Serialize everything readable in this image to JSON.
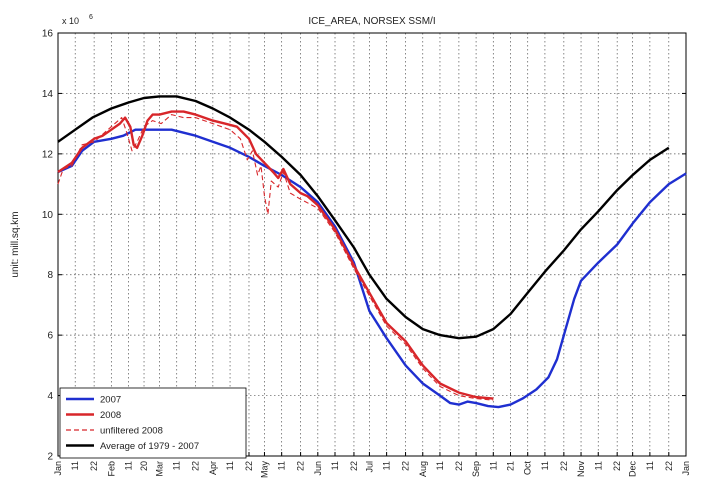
{
  "chart_data": {
    "type": "line",
    "title": "ICE_AREA, NORSEX SSM/I",
    "ylabel": "unit: mill.sq.km",
    "y_exponent_label": "x 10",
    "y_exponent": "6",
    "ylim": [
      2,
      16
    ],
    "yticks": [
      2,
      4,
      6,
      8,
      10,
      12,
      14,
      16
    ],
    "xlim": [
      0,
      365
    ],
    "grid": true,
    "legend_position": "bottom-left",
    "x_ticks": [
      {
        "x": 0,
        "label": "Jan",
        "major": true
      },
      {
        "x": 10,
        "label": "11",
        "major": false
      },
      {
        "x": 21,
        "label": "22",
        "major": false
      },
      {
        "x": 31,
        "label": "Feb",
        "major": true
      },
      {
        "x": 41,
        "label": "11",
        "major": false
      },
      {
        "x": 50,
        "label": "20",
        "major": false
      },
      {
        "x": 59,
        "label": "Mar",
        "major": true
      },
      {
        "x": 69,
        "label": "11",
        "major": false
      },
      {
        "x": 80,
        "label": "22",
        "major": false
      },
      {
        "x": 90,
        "label": "Apr",
        "major": true
      },
      {
        "x": 100,
        "label": "11",
        "major": false
      },
      {
        "x": 111,
        "label": "22",
        "major": false
      },
      {
        "x": 120,
        "label": "May",
        "major": true
      },
      {
        "x": 130,
        "label": "11",
        "major": false
      },
      {
        "x": 141,
        "label": "22",
        "major": false
      },
      {
        "x": 151,
        "label": "Jun",
        "major": true
      },
      {
        "x": 161,
        "label": "11",
        "major": false
      },
      {
        "x": 172,
        "label": "22",
        "major": false
      },
      {
        "x": 181,
        "label": "Jul",
        "major": true
      },
      {
        "x": 191,
        "label": "11",
        "major": false
      },
      {
        "x": 202,
        "label": "22",
        "major": false
      },
      {
        "x": 212,
        "label": "Aug",
        "major": true
      },
      {
        "x": 222,
        "label": "11",
        "major": false
      },
      {
        "x": 233,
        "label": "22",
        "major": false
      },
      {
        "x": 243,
        "label": "Sep",
        "major": true
      },
      {
        "x": 253,
        "label": "11",
        "major": false
      },
      {
        "x": 263,
        "label": "21",
        "major": false
      },
      {
        "x": 273,
        "label": "Oct",
        "major": true
      },
      {
        "x": 283,
        "label": "11",
        "major": false
      },
      {
        "x": 294,
        "label": "22",
        "major": false
      },
      {
        "x": 304,
        "label": "Nov",
        "major": true
      },
      {
        "x": 314,
        "label": "11",
        "major": false
      },
      {
        "x": 325,
        "label": "22",
        "major": false
      },
      {
        "x": 334,
        "label": "Dec",
        "major": true
      },
      {
        "x": 344,
        "label": "11",
        "major": false
      },
      {
        "x": 355,
        "label": "22",
        "major": false
      },
      {
        "x": 365,
        "label": "Jan",
        "major": true
      }
    ],
    "series": [
      {
        "name": "2007",
        "color": "#1f2fd0",
        "dash": "solid",
        "points": [
          [
            0,
            11.4
          ],
          [
            8,
            11.6
          ],
          [
            14,
            12.1
          ],
          [
            21,
            12.4
          ],
          [
            31,
            12.5
          ],
          [
            38,
            12.6
          ],
          [
            45,
            12.8
          ],
          [
            52,
            12.8
          ],
          [
            59,
            12.8
          ],
          [
            66,
            12.8
          ],
          [
            73,
            12.7
          ],
          [
            80,
            12.6
          ],
          [
            90,
            12.4
          ],
          [
            100,
            12.2
          ],
          [
            111,
            11.9
          ],
          [
            120,
            11.6
          ],
          [
            130,
            11.3
          ],
          [
            141,
            10.9
          ],
          [
            151,
            10.4
          ],
          [
            161,
            9.6
          ],
          [
            172,
            8.4
          ],
          [
            181,
            6.8
          ],
          [
            191,
            5.9
          ],
          [
            202,
            5.0
          ],
          [
            212,
            4.4
          ],
          [
            222,
            4.0
          ],
          [
            228,
            3.75
          ],
          [
            233,
            3.7
          ],
          [
            238,
            3.8
          ],
          [
            243,
            3.75
          ],
          [
            250,
            3.65
          ],
          [
            256,
            3.62
          ],
          [
            263,
            3.7
          ],
          [
            270,
            3.9
          ],
          [
            278,
            4.2
          ],
          [
            285,
            4.6
          ],
          [
            290,
            5.2
          ],
          [
            295,
            6.2
          ],
          [
            300,
            7.2
          ],
          [
            304,
            7.8
          ],
          [
            314,
            8.4
          ],
          [
            325,
            9.0
          ],
          [
            334,
            9.7
          ],
          [
            344,
            10.4
          ],
          [
            355,
            11.0
          ],
          [
            365,
            11.35
          ]
        ]
      },
      {
        "name": "2008",
        "color": "#d8262a",
        "dash": "solid",
        "points": [
          [
            0,
            11.4
          ],
          [
            8,
            11.7
          ],
          [
            14,
            12.2
          ],
          [
            21,
            12.5
          ],
          [
            26,
            12.6
          ],
          [
            31,
            12.8
          ],
          [
            36,
            13.0
          ],
          [
            39,
            13.2
          ],
          [
            42,
            12.9
          ],
          [
            44,
            12.3
          ],
          [
            46,
            12.2
          ],
          [
            49,
            12.6
          ],
          [
            52,
            13.1
          ],
          [
            55,
            13.3
          ],
          [
            59,
            13.3
          ],
          [
            66,
            13.4
          ],
          [
            73,
            13.4
          ],
          [
            80,
            13.3
          ],
          [
            90,
            13.1
          ],
          [
            97,
            13.0
          ],
          [
            104,
            12.9
          ],
          [
            111,
            12.5
          ],
          [
            115,
            12.0
          ],
          [
            120,
            11.7
          ],
          [
            125,
            11.4
          ],
          [
            128,
            11.2
          ],
          [
            131,
            11.5
          ],
          [
            135,
            11.0
          ],
          [
            141,
            10.7
          ],
          [
            145,
            10.6
          ],
          [
            151,
            10.3
          ],
          [
            161,
            9.5
          ],
          [
            172,
            8.3
          ],
          [
            181,
            7.4
          ],
          [
            191,
            6.4
          ],
          [
            202,
            5.8
          ],
          [
            212,
            5.0
          ],
          [
            222,
            4.4
          ],
          [
            233,
            4.1
          ],
          [
            243,
            3.95
          ],
          [
            253,
            3.9
          ]
        ]
      },
      {
        "name": "unfiltered 2008",
        "color": "#d8262a",
        "dash": "dashed",
        "points": [
          [
            0,
            11.0
          ],
          [
            3,
            11.5
          ],
          [
            8,
            11.6
          ],
          [
            14,
            12.3
          ],
          [
            21,
            12.4
          ],
          [
            31,
            12.9
          ],
          [
            37,
            13.2
          ],
          [
            40,
            12.7
          ],
          [
            43,
            12.1
          ],
          [
            46,
            12.4
          ],
          [
            50,
            12.9
          ],
          [
            55,
            13.1
          ],
          [
            60,
            13.0
          ],
          [
            66,
            13.3
          ],
          [
            73,
            13.2
          ],
          [
            80,
            13.2
          ],
          [
            90,
            13.0
          ],
          [
            100,
            12.8
          ],
          [
            106,
            12.5
          ],
          [
            110,
            11.8
          ],
          [
            113,
            12.1
          ],
          [
            116,
            11.3
          ],
          [
            118,
            11.6
          ],
          [
            120,
            10.6
          ],
          [
            122,
            10.0
          ],
          [
            124,
            11.1
          ],
          [
            128,
            10.9
          ],
          [
            131,
            11.4
          ],
          [
            135,
            10.7
          ],
          [
            141,
            10.5
          ],
          [
            151,
            10.2
          ],
          [
            161,
            9.4
          ],
          [
            172,
            8.2
          ],
          [
            181,
            7.3
          ],
          [
            191,
            6.3
          ],
          [
            202,
            5.7
          ],
          [
            212,
            4.9
          ],
          [
            222,
            4.3
          ],
          [
            233,
            4.0
          ],
          [
            243,
            3.9
          ],
          [
            253,
            3.85
          ]
        ]
      },
      {
        "name": "Average of 1979 - 2007",
        "color": "#000000",
        "dash": "solid",
        "points": [
          [
            0,
            12.4
          ],
          [
            10,
            12.8
          ],
          [
            20,
            13.2
          ],
          [
            31,
            13.5
          ],
          [
            41,
            13.7
          ],
          [
            50,
            13.85
          ],
          [
            59,
            13.9
          ],
          [
            69,
            13.9
          ],
          [
            80,
            13.75
          ],
          [
            90,
            13.5
          ],
          [
            100,
            13.2
          ],
          [
            111,
            12.8
          ],
          [
            120,
            12.4
          ],
          [
            130,
            11.9
          ],
          [
            141,
            11.3
          ],
          [
            151,
            10.6
          ],
          [
            161,
            9.8
          ],
          [
            172,
            8.9
          ],
          [
            181,
            8.0
          ],
          [
            191,
            7.2
          ],
          [
            202,
            6.6
          ],
          [
            212,
            6.2
          ],
          [
            222,
            6.0
          ],
          [
            233,
            5.9
          ],
          [
            243,
            5.95
          ],
          [
            253,
            6.2
          ],
          [
            263,
            6.7
          ],
          [
            273,
            7.4
          ],
          [
            283,
            8.1
          ],
          [
            294,
            8.8
          ],
          [
            304,
            9.5
          ],
          [
            314,
            10.1
          ],
          [
            325,
            10.8
          ],
          [
            334,
            11.3
          ],
          [
            344,
            11.8
          ],
          [
            355,
            12.2
          ]
        ]
      }
    ]
  }
}
